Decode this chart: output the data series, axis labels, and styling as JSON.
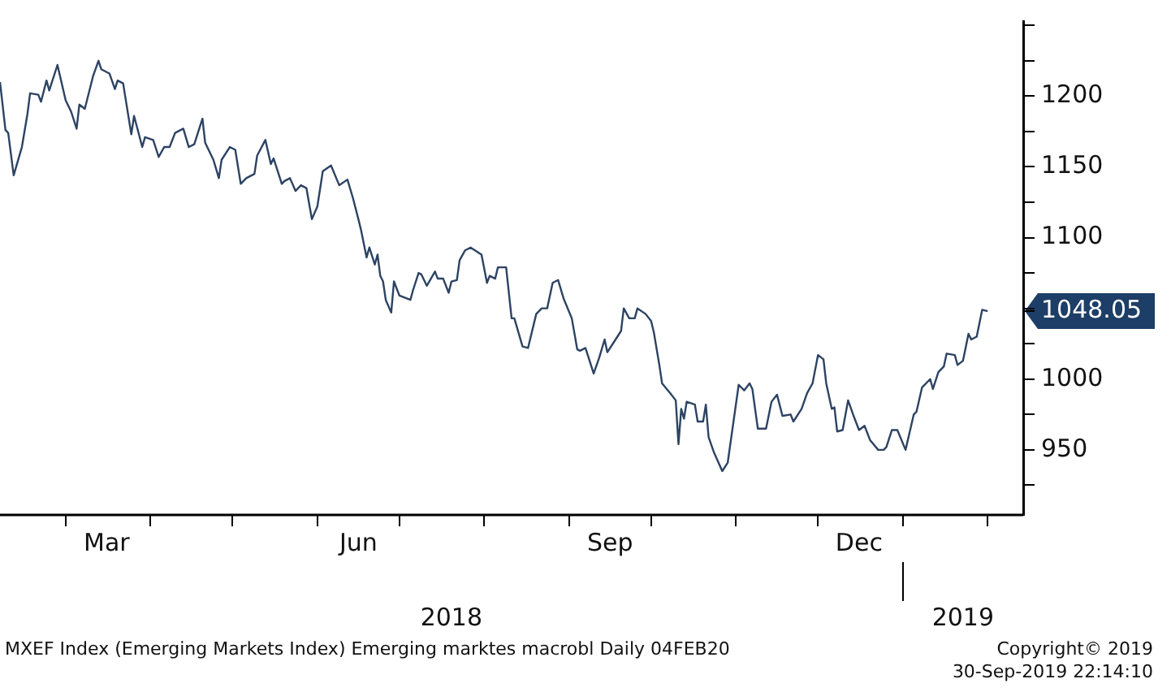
{
  "chart_data": {
    "type": "line",
    "color": "#2d4363",
    "line_style": "solid",
    "grid": false,
    "legend": false,
    "xlim": [
      "2018-02-05",
      "2019-02-14"
    ],
    "xticks": [
      {
        "value": "2018-03-01",
        "label": null
      },
      {
        "value": "2018-03-16",
        "label": "Mar"
      },
      {
        "value": "2018-04-01",
        "label": null
      },
      {
        "value": "2018-05-01",
        "label": null
      },
      {
        "value": "2018-06-01",
        "label": null
      },
      {
        "value": "2018-06-16",
        "label": "Jun"
      },
      {
        "value": "2018-07-01",
        "label": null
      },
      {
        "value": "2018-08-01",
        "label": null
      },
      {
        "value": "2018-09-01",
        "label": null
      },
      {
        "value": "2018-09-16",
        "label": "Sep"
      },
      {
        "value": "2018-10-01",
        "label": null
      },
      {
        "value": "2018-11-01",
        "label": null
      },
      {
        "value": "2018-12-01",
        "label": null
      },
      {
        "value": "2018-12-16",
        "label": "Dec"
      },
      {
        "value": "2019-01-01",
        "label": null
      },
      {
        "value": "2019-02-01",
        "label": null
      }
    ],
    "x2lim": [
      "2018-02-05",
      "2019-02-14"
    ],
    "x2ticks": [
      {
        "value": "2018-07-20",
        "label": "2018"
      },
      {
        "value": "2019-01-01",
        "label": null
      },
      {
        "value": "2019-01-23",
        "label": "2019"
      }
    ],
    "ylim": [
      904,
      1253
    ],
    "yticks": [
      {
        "value": 925,
        "label": null
      },
      950,
      {
        "value": 975,
        "label": null
      },
      1000,
      {
        "value": 1025,
        "label": null
      },
      {
        "value": 1048.05,
        "label": "1048.05"
      },
      {
        "value": 1050,
        "label": null
      },
      {
        "value": 1075,
        "label": null
      },
      1100,
      {
        "value": 1125,
        "label": null
      },
      1150,
      {
        "value": 1175,
        "label": null
      },
      1200,
      {
        "value": 1225,
        "label": null
      },
      {
        "value": 1250,
        "label": null
      }
    ],
    "x": [
      "2018-02-05",
      "2018-02-07",
      "2018-02-08",
      "2018-02-10",
      "2018-02-13",
      "2018-02-15",
      "2018-02-16",
      "2018-02-19",
      "2018-02-20",
      "2018-02-22",
      "2018-02-23",
      "2018-02-26",
      "2018-03-01",
      "2018-03-03",
      "2018-03-05",
      "2018-03-06",
      "2018-03-08",
      "2018-03-11",
      "2018-03-13",
      "2018-03-14",
      "2018-03-17",
      "2018-03-19",
      "2018-03-20",
      "2018-03-22",
      "2018-03-25",
      "2018-03-26",
      "2018-03-29",
      "2018-03-30",
      "2018-04-02",
      "2018-04-04",
      "2018-04-06",
      "2018-04-08",
      "2018-04-10",
      "2018-04-13",
      "2018-04-15",
      "2018-04-17",
      "2018-04-20",
      "2018-04-21",
      "2018-04-24",
      "2018-04-26",
      "2018-04-27",
      "2018-04-30",
      "2018-05-02",
      "2018-05-04",
      "2018-05-06",
      "2018-05-09",
      "2018-05-10",
      "2018-05-13",
      "2018-05-15",
      "2018-05-16",
      "2018-05-19",
      "2018-05-20",
      "2018-05-22",
      "2018-05-24",
      "2018-05-26",
      "2018-05-28",
      "2018-05-30",
      "2018-06-01",
      "2018-06-03",
      "2018-06-06",
      "2018-06-09",
      "2018-06-12",
      "2018-06-14",
      "2018-06-16",
      "2018-06-17",
      "2018-06-19",
      "2018-06-20",
      "2018-06-22",
      "2018-06-23",
      "2018-06-24",
      "2018-06-25",
      "2018-06-26",
      "2018-06-28",
      "2018-06-29",
      "2018-07-01",
      "2018-07-05",
      "2018-07-06",
      "2018-07-08",
      "2018-07-09",
      "2018-07-11",
      "2018-07-14",
      "2018-07-15",
      "2018-07-17",
      "2018-07-19",
      "2018-07-20",
      "2018-07-22",
      "2018-07-23",
      "2018-07-25",
      "2018-07-27",
      "2018-07-31",
      "2018-08-02",
      "2018-08-03",
      "2018-08-05",
      "2018-08-06",
      "2018-08-09",
      "2018-08-11",
      "2018-08-12",
      "2018-08-15",
      "2018-08-17",
      "2018-08-20",
      "2018-08-22",
      "2018-08-24",
      "2018-08-26",
      "2018-08-28",
      "2018-08-30",
      "2018-09-02",
      "2018-09-04",
      "2018-09-05",
      "2018-09-07",
      "2018-09-10",
      "2018-09-12",
      "2018-09-14",
      "2018-09-15",
      "2018-09-18",
      "2018-09-20",
      "2018-09-21",
      "2018-09-23",
      "2018-09-25",
      "2018-09-26",
      "2018-09-29",
      "2018-10-01",
      "2018-10-02",
      "2018-10-04",
      "2018-10-05",
      "2018-10-08",
      "2018-10-10",
      "2018-10-11",
      "2018-10-12",
      "2018-10-13",
      "2018-10-14",
      "2018-10-17",
      "2018-10-18",
      "2018-10-20",
      "2018-10-21",
      "2018-10-22",
      "2018-10-24",
      "2018-10-27",
      "2018-10-29",
      "2018-11-02",
      "2018-11-04",
      "2018-11-06",
      "2018-11-07",
      "2018-11-09",
      "2018-11-12",
      "2018-11-14",
      "2018-11-16",
      "2018-11-18",
      "2018-11-21",
      "2018-11-22",
      "2018-11-25",
      "2018-11-27",
      "2018-11-29",
      "2018-12-01",
      "2018-12-03",
      "2018-12-04",
      "2018-12-06",
      "2018-12-07",
      "2018-12-08",
      "2018-12-10",
      "2018-12-12",
      "2018-12-14",
      "2018-12-16",
      "2018-12-18",
      "2018-12-20",
      "2018-12-23",
      "2018-12-25",
      "2018-12-26",
      "2018-12-28",
      "2018-12-30",
      "2019-01-02",
      "2019-01-05",
      "2019-01-06",
      "2019-01-08",
      "2019-01-11",
      "2019-01-12",
      "2019-01-14",
      "2019-01-16",
      "2019-01-17",
      "2019-01-20",
      "2019-01-21",
      "2019-01-23",
      "2019-01-25",
      "2019-01-26",
      "2019-01-28",
      "2019-01-30",
      "2019-02-01"
    ],
    "values": [
      1210,
      1176,
      1174,
      1144,
      1164,
      1187,
      1202,
      1201,
      1196,
      1211,
      1204,
      1222,
      1197,
      1189,
      1177,
      1194,
      1191,
      1214,
      1225,
      1219,
      1216,
      1205,
      1211,
      1209,
      1173,
      1186,
      1164,
      1171,
      1169,
      1157,
      1164,
      1164,
      1174,
      1177,
      1164,
      1166,
      1184,
      1167,
      1155,
      1142,
      1155,
      1164,
      1162,
      1138,
      1142,
      1145,
      1158,
      1169,
      1152,
      1156,
      1138,
      1140,
      1142,
      1133,
      1137,
      1135,
      1113,
      1122,
      1147,
      1151,
      1137,
      1141,
      1128,
      1113,
      1105,
      1086,
      1093,
      1081,
      1088,
      1073,
      1069,
      1056,
      1047,
      1069,
      1059,
      1056,
      1063,
      1075,
      1074,
      1066,
      1076,
      1071,
      1071,
      1061,
      1069,
      1070,
      1084,
      1091,
      1093,
      1088,
      1068,
      1073,
      1071,
      1079,
      1079,
      1043,
      1043,
      1023,
      1022,
      1046,
      1050,
      1050,
      1068,
      1070,
      1057,
      1043,
      1021,
      1020,
      1022,
      1004,
      1015,
      1028,
      1019,
      1028,
      1034,
      1050,
      1043,
      1043,
      1050,
      1046,
      1041,
      1033,
      1010,
      997,
      990,
      985,
      954,
      979,
      972,
      984,
      982,
      970,
      970,
      982,
      959,
      948,
      935,
      941,
      996,
      992,
      997,
      993,
      965,
      965,
      984,
      989,
      974,
      975,
      970,
      979,
      990,
      997,
      1017,
      1014,
      997,
      979,
      980,
      963,
      964,
      985,
      974,
      964,
      967,
      957,
      950,
      950,
      952,
      964,
      964,
      950,
      975,
      977,
      994,
      1000,
      993,
      1005,
      1009,
      1018,
      1017,
      1010,
      1013,
      1032,
      1028,
      1030,
      1049,
      1048.05
    ],
    "value_labels": [
      null,
      null,
      null,
      null,
      null,
      null,
      null,
      null,
      null,
      null,
      null,
      null,
      null,
      null,
      null,
      null,
      null,
      null,
      null,
      null,
      null,
      null,
      null,
      null,
      null,
      null,
      null,
      null,
      null,
      null,
      null,
      null,
      null,
      null,
      null,
      null,
      null,
      null,
      null,
      null,
      null,
      null,
      null,
      null,
      null,
      null,
      null,
      null,
      null,
      null,
      null,
      null,
      null,
      null,
      null,
      null,
      null,
      null,
      null,
      null,
      null,
      null,
      null,
      null,
      null,
      null,
      null,
      null,
      null,
      null,
      null,
      null,
      null,
      null,
      null,
      null,
      null,
      null,
      null,
      null,
      null,
      null,
      null,
      null,
      null,
      null,
      null,
      null,
      null,
      null,
      null,
      null,
      null,
      null,
      null,
      null,
      null,
      null,
      null,
      null,
      null,
      null,
      null,
      null,
      null,
      null,
      null,
      null,
      null,
      null,
      null,
      null,
      null,
      null,
      null,
      null,
      null,
      null,
      null,
      null,
      null,
      null,
      null,
      null,
      null,
      null,
      null,
      null,
      null,
      null,
      null,
      null,
      null,
      null,
      null,
      null,
      null,
      null,
      null,
      null,
      null,
      null,
      null,
      null,
      null,
      null,
      null,
      null,
      null,
      null,
      null,
      null,
      null,
      null,
      null,
      null,
      null,
      null,
      null,
      null,
      null,
      null,
      null,
      null,
      null,
      null,
      null,
      null,
      null,
      null,
      null,
      null,
      null,
      null,
      null,
      null,
      null,
      null,
      null,
      null,
      null,
      null,
      null,
      null,
      null,
      null
    ],
    "annotations": [
      "MXEF Index (Emerging Markets Index) Emerging marktes macrobl  Daily 04FEB20",
      "Copyright© 2019",
      "30-Sep-2019 22:14:10"
    ]
  }
}
